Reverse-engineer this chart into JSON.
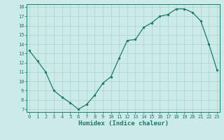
{
  "x": [
    0,
    1,
    2,
    3,
    4,
    5,
    6,
    7,
    8,
    9,
    10,
    11,
    12,
    13,
    14,
    15,
    16,
    17,
    18,
    19,
    20,
    21,
    22,
    23
  ],
  "y": [
    13.3,
    12.2,
    11.0,
    9.0,
    8.3,
    7.7,
    7.0,
    7.5,
    8.5,
    9.8,
    10.5,
    12.5,
    14.4,
    14.5,
    15.8,
    16.3,
    17.0,
    17.2,
    17.8,
    17.8,
    17.4,
    16.5,
    14.0,
    11.2
  ],
  "ylim_min": 7,
  "ylim_max": 18,
  "xlim_min": 0,
  "xlim_max": 23,
  "yticks": [
    7,
    8,
    9,
    10,
    11,
    12,
    13,
    14,
    15,
    16,
    17,
    18
  ],
  "xticks": [
    0,
    1,
    2,
    3,
    4,
    5,
    6,
    7,
    8,
    9,
    10,
    11,
    12,
    13,
    14,
    15,
    16,
    17,
    18,
    19,
    20,
    21,
    22,
    23
  ],
  "xlabel": "Humidex (Indice chaleur)",
  "line_color": "#1a7a6e",
  "marker_color": "#1a7a6e",
  "bg_color": "#cceae7",
  "grid_color": "#aad4d0",
  "tick_color": "#1a7a6e",
  "label_color": "#1a7a6e",
  "axis_color": "#1a7a6e",
  "tick_fontsize": 5.0,
  "xlabel_fontsize": 6.5,
  "linewidth": 0.9,
  "markersize": 2.8
}
